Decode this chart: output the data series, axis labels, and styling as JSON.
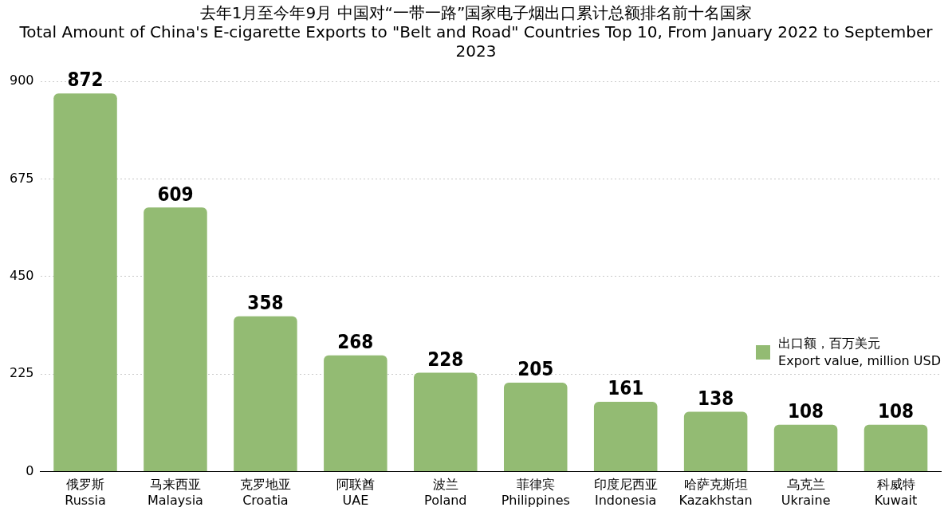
{
  "chart_data": {
    "type": "bar",
    "title": "去年1月至今年9月 中国对“一带一路”国家电子烟出口累计总额排名前十名国家",
    "subtitle": "Total Amount of China's E-cigarette Exports to \"Belt and Road\" Countries Top 10, From January 2022 to September 2023",
    "categories": [
      "俄罗斯\nRussia",
      "马来西亚\nMalaysia",
      "克罗地亚\nCroatia",
      "阿联酋\nUAE",
      "波兰\nPoland",
      "菲律宾\nPhilippines",
      "印度尼西亚\nIndonesia",
      "哈萨克斯坦\nKazakhstan",
      "乌克兰\nUkraine",
      "科威特\nKuwait"
    ],
    "series": [
      {
        "name": "出口额，百万美元\nExport value, million USD",
        "color": "#93bb73",
        "values": [
          872,
          609,
          358,
          268,
          228,
          205,
          161,
          138,
          108,
          108
        ]
      }
    ],
    "ylim": [
      0,
      900
    ],
    "yticks": [
      0,
      225,
      450,
      675,
      900
    ],
    "grid": "y",
    "legend": "right",
    "data_labels": true
  }
}
